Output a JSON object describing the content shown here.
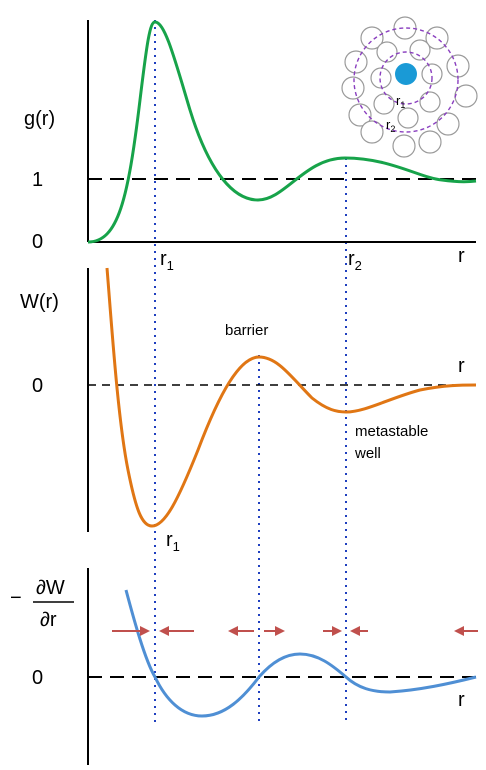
{
  "panels": {
    "g": {
      "ylabel": "g(r)",
      "tick_one": "1",
      "tick_zero": "0",
      "xlabel": "r",
      "r1": "r",
      "r1_sub": "1",
      "r2": "r",
      "r2_sub": "2",
      "color": "#17a34a"
    },
    "w": {
      "ylabel": "W(r)",
      "tick_zero": "0",
      "xlabel": "r",
      "barrier": "barrier",
      "well_line1": "metastable",
      "well_line2": "well",
      "r1": "r",
      "r1_sub": "1",
      "color": "#e07614"
    },
    "f": {
      "ylabel_minus": "−",
      "ylabel_num": "∂W",
      "ylabel_den": "∂r",
      "tick_zero": "0",
      "xlabel": "r",
      "color": "#4f8fd4",
      "arrow_color": "#c0504d"
    }
  },
  "inset": {
    "r1": "r",
    "r1_sub": "1",
    "r2": "r",
    "r2_sub": "2",
    "center_color": "#1a9ad6",
    "shell_color": "#8a3fbf"
  },
  "guides_color": "#1f3fbf"
}
